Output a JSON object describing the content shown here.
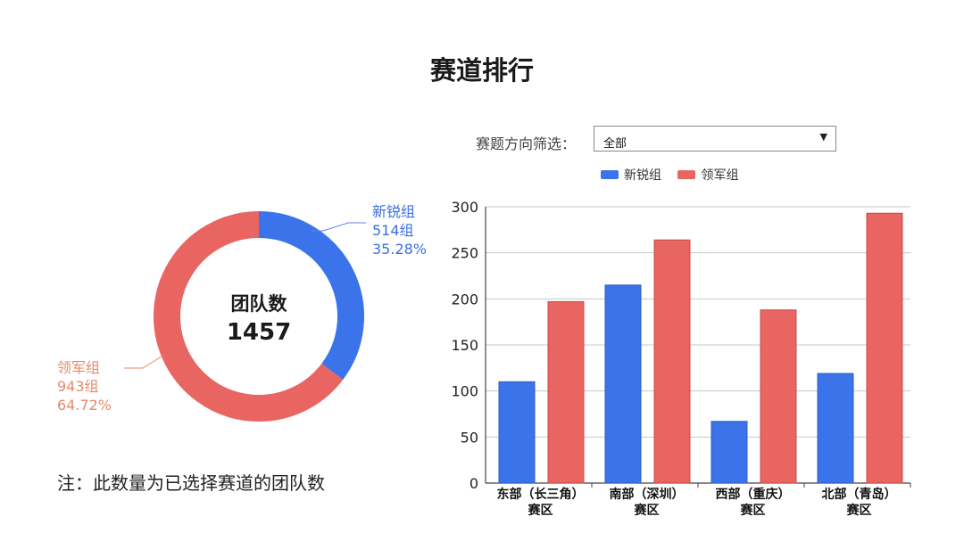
{
  "page": {
    "title": "赛道排行",
    "footnote": "注：此数量为已选择赛道的团队数"
  },
  "filter": {
    "label": "赛题方向筛选：",
    "selected": "全部"
  },
  "colors": {
    "new": "#3b74ea",
    "lead": "#e86562",
    "new_text": "#3b6fe0",
    "lead_text": "#e58a6a"
  },
  "donut": {
    "center_label": "团队数",
    "total": "1457",
    "segments": [
      {
        "name": "新锐组",
        "count_label": "514组",
        "percent_label": "35.28%",
        "value": 514,
        "color": "#3b74ea"
      },
      {
        "name": "领军组",
        "count_label": "943组",
        "percent_label": "64.72%",
        "value": 943,
        "color": "#e86562"
      }
    ]
  },
  "chart_data": [
    {
      "type": "pie",
      "labels": [
        "新锐组",
        "领军组"
      ],
      "values": [
        514,
        943
      ],
      "center_text": [
        "团队数",
        "1457"
      ]
    },
    {
      "type": "bar",
      "categories": [
        "东部（长三角）\n赛区",
        "南部（深圳）\n赛区",
        "西部（重庆）\n赛区",
        "北部（青岛）\n赛区"
      ],
      "series": [
        {
          "name": "新锐组",
          "values": [
            110,
            215,
            67,
            119
          ],
          "color": "#3b74ea"
        },
        {
          "name": "领军组",
          "values": [
            197,
            264,
            188,
            293
          ],
          "color": "#e86562"
        }
      ],
      "yticks": [
        0,
        50,
        100,
        150,
        200,
        250,
        300
      ],
      "ylim": [
        0,
        300
      ],
      "grid": true,
      "legend_position": "top"
    }
  ]
}
